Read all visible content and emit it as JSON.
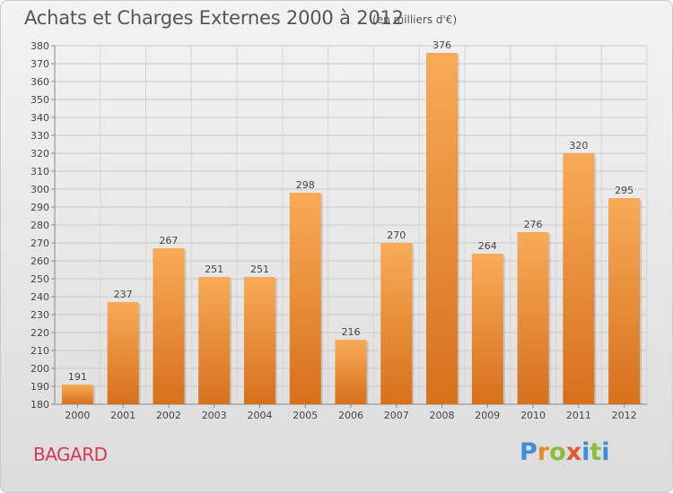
{
  "header": {
    "title": "Achats et Charges Externes 2000 à 2012",
    "subtitle": "(en milliers d'€)"
  },
  "footer": {
    "commune": "BAGARD",
    "brand": "Proxiti"
  },
  "colors": {
    "bar_light": "#f7a956",
    "bar_dark": "#d8711c",
    "grid": "#c8c8c8",
    "title": "#555555",
    "commune": "#d63a57"
  },
  "chart_data": {
    "type": "bar",
    "categories": [
      "2000",
      "2001",
      "2002",
      "2003",
      "2004",
      "2005",
      "2006",
      "2007",
      "2008",
      "2009",
      "2010",
      "2011",
      "2012"
    ],
    "values": [
      191,
      237,
      267,
      251,
      251,
      298,
      216,
      270,
      376,
      264,
      276,
      320,
      295
    ],
    "title": "Achats et Charges Externes 2000 à 2012",
    "subtitle": "(en milliers d'€)",
    "xlabel": "",
    "ylabel": "",
    "ylim": [
      180,
      380
    ],
    "yticks": [
      180,
      190,
      200,
      210,
      220,
      230,
      240,
      250,
      260,
      270,
      280,
      290,
      300,
      310,
      320,
      330,
      340,
      350,
      360,
      370,
      380
    ],
    "grid": true,
    "legend": "none"
  }
}
